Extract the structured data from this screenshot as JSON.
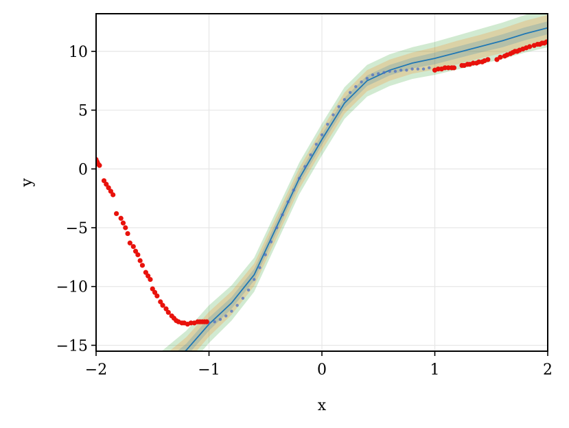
{
  "chart_data": {
    "type": "line",
    "xlabel": "x",
    "ylabel": "y",
    "xlim": [
      -2,
      2
    ],
    "ylim": [
      -15.5,
      13.2
    ],
    "xticks": [
      -2,
      -1,
      0,
      1,
      2
    ],
    "yticks": [
      10,
      5,
      0,
      -5,
      -10,
      -15
    ],
    "xtick_labels": [
      "−2",
      "−1",
      "0",
      "1",
      "2"
    ],
    "ytick_labels": [
      "10",
      "5",
      "0",
      "−5",
      "−10",
      "−15"
    ],
    "grid": true,
    "colors": {
      "mean_line": "#1f77b4",
      "band_outer": "#2ca02c",
      "band_middle": "#ff7f0e",
      "band_inner": "#1f77b4",
      "train_points": "#4c6fc4",
      "test_points": "#e8120c"
    },
    "series": [
      {
        "kind": "mean",
        "x": [
          -1.42,
          -1.2,
          -1.0,
          -0.8,
          -0.6,
          -0.4,
          -0.2,
          0.0,
          0.2,
          0.4,
          0.6,
          0.8,
          1.0,
          1.2,
          1.4,
          1.6,
          1.8,
          2.0
        ],
        "y": [
          -17.2,
          -15.4,
          -13.2,
          -11.4,
          -9.0,
          -4.9,
          -0.8,
          2.5,
          5.6,
          7.5,
          8.4,
          9.0,
          9.4,
          9.9,
          10.4,
          10.9,
          11.5,
          12.0
        ]
      },
      {
        "kind": "band",
        "x": [
          -1.42,
          -1.2,
          -1.0,
          -0.8,
          -0.6,
          -0.4,
          -0.2,
          0.0,
          0.2,
          0.4,
          0.6,
          0.8,
          1.0,
          1.2,
          1.4,
          1.6,
          1.8,
          2.0
        ],
        "half_width": [
          1.7,
          1.65,
          1.6,
          1.5,
          1.45,
          1.4,
          1.35,
          1.35,
          1.35,
          1.35,
          1.35,
          1.35,
          1.4,
          1.45,
          1.5,
          1.55,
          1.6,
          1.65
        ]
      },
      {
        "kind": "band",
        "x": [
          -1.42,
          -1.2,
          -1.0,
          -0.8,
          -0.6,
          -0.4,
          -0.2,
          0.0,
          0.2,
          0.4,
          0.6,
          0.8,
          1.0,
          1.2,
          1.4,
          1.6,
          1.8,
          2.0
        ],
        "half_width": [
          1.15,
          1.1,
          1.05,
          1.0,
          0.95,
          0.95,
          0.9,
          0.9,
          0.9,
          0.9,
          0.9,
          0.9,
          0.95,
          1.0,
          1.0,
          1.05,
          1.1,
          1.1
        ]
      },
      {
        "kind": "band",
        "x": [
          -1.42,
          -1.2,
          -1.0,
          -0.8,
          -0.6,
          -0.4,
          -0.2,
          0.0,
          0.2,
          0.4,
          0.6,
          0.8,
          1.0,
          1.2,
          1.4,
          1.6,
          1.8,
          2.0
        ],
        "half_width": [
          0.6,
          0.55,
          0.55,
          0.5,
          0.5,
          0.5,
          0.45,
          0.45,
          0.45,
          0.45,
          0.45,
          0.45,
          0.5,
          0.5,
          0.5,
          0.55,
          0.55,
          0.55
        ]
      },
      {
        "kind": "train",
        "x": [
          -1.0,
          -0.95,
          -0.9,
          -0.85,
          -0.8,
          -0.75,
          -0.7,
          -0.65,
          -0.6,
          -0.55,
          -0.5,
          -0.45,
          -0.4,
          -0.35,
          -0.3,
          -0.25,
          -0.2,
          -0.15,
          -0.1,
          -0.05,
          0.0,
          0.05,
          0.1,
          0.15,
          0.2,
          0.25,
          0.3,
          0.35,
          0.4,
          0.45,
          0.5,
          0.55,
          0.6,
          0.65,
          0.7,
          0.75,
          0.8,
          0.85,
          0.9,
          0.95
        ],
        "y": [
          -13.1,
          -13.0,
          -12.8,
          -12.5,
          -12.1,
          -11.6,
          -11.0,
          -10.3,
          -9.4,
          -8.4,
          -7.3,
          -6.2,
          -5.0,
          -3.9,
          -2.8,
          -1.8,
          -0.8,
          0.2,
          1.2,
          2.1,
          2.9,
          3.8,
          4.6,
          5.3,
          5.9,
          6.5,
          7.0,
          7.4,
          7.7,
          8.0,
          8.1,
          8.2,
          8.3,
          8.3,
          8.4,
          8.4,
          8.5,
          8.5,
          8.5,
          8.6
        ]
      },
      {
        "kind": "test",
        "x": [
          -2.0,
          -1.99,
          -1.98,
          -1.97,
          -1.93,
          -1.91,
          -1.89,
          -1.87,
          -1.85,
          -1.82,
          -1.78,
          -1.76,
          -1.74,
          -1.72,
          -1.7,
          -1.67,
          -1.65,
          -1.63,
          -1.61,
          -1.59,
          -1.56,
          -1.54,
          -1.52,
          -1.5,
          -1.48,
          -1.46,
          -1.43,
          -1.41,
          -1.38,
          -1.36,
          -1.33,
          -1.31,
          -1.29,
          -1.27,
          -1.24,
          -1.22,
          -1.19,
          -1.16,
          -1.13,
          -1.1,
          -1.08,
          -1.06,
          -1.04,
          -1.02,
          1.0,
          1.03,
          1.06,
          1.09,
          1.12,
          1.15,
          1.17,
          1.24,
          1.26,
          1.29,
          1.31,
          1.34,
          1.37,
          1.39,
          1.42,
          1.44,
          1.47,
          1.55,
          1.58,
          1.62,
          1.64,
          1.67,
          1.69,
          1.71,
          1.73,
          1.75,
          1.78,
          1.81,
          1.84,
          1.88,
          1.91,
          1.93,
          1.95,
          1.97,
          1.99
        ],
        "y": [
          0.8,
          0.6,
          0.4,
          0.3,
          -1.0,
          -1.3,
          -1.6,
          -1.9,
          -2.2,
          -3.8,
          -4.2,
          -4.6,
          -5.0,
          -5.5,
          -6.3,
          -6.6,
          -7.0,
          -7.3,
          -7.8,
          -8.2,
          -8.8,
          -9.1,
          -9.4,
          -10.2,
          -10.5,
          -10.8,
          -11.3,
          -11.6,
          -11.9,
          -12.2,
          -12.5,
          -12.7,
          -12.9,
          -13.0,
          -13.1,
          -13.1,
          -13.2,
          -13.1,
          -13.1,
          -13.0,
          -13.0,
          -13.0,
          -13.0,
          -13.0,
          8.4,
          8.5,
          8.5,
          8.6,
          8.6,
          8.6,
          8.6,
          8.8,
          8.8,
          8.9,
          8.9,
          9.0,
          9.0,
          9.1,
          9.1,
          9.2,
          9.3,
          9.3,
          9.5,
          9.6,
          9.7,
          9.8,
          9.9,
          10.0,
          10.0,
          10.1,
          10.2,
          10.3,
          10.4,
          10.5,
          10.6,
          10.6,
          10.7,
          10.7,
          10.8
        ]
      }
    ]
  }
}
